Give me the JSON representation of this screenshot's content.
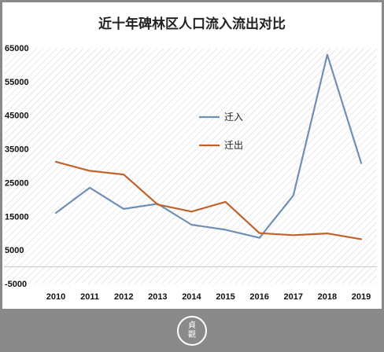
{
  "seal": {
    "line1": "貞",
    "line2": "觀"
  },
  "chart_data": {
    "type": "line",
    "title": "近十年碑林区人口流入流出对比",
    "xlabel": "",
    "ylabel": "",
    "categories": [
      "2010",
      "2011",
      "2012",
      "2013",
      "2014",
      "2015",
      "2016",
      "2017",
      "2018",
      "2019"
    ],
    "y_ticks": [
      65000,
      55000,
      45000,
      35000,
      25000,
      15000,
      5000,
      -5000
    ],
    "y_tick_labels": [
      "65000",
      "55000",
      "45000",
      "35000",
      "25000",
      "15000",
      "5000",
      "-5000"
    ],
    "ylim": [
      -5000,
      65000
    ],
    "grid": false,
    "legend_position": "center",
    "series": [
      {
        "name": "迁入",
        "color": "#6f8fb5",
        "values": [
          16000,
          23500,
          17200,
          18700,
          12500,
          11000,
          8600,
          21200,
          63000,
          30800
        ]
      },
      {
        "name": "迁出",
        "color": "#c0622b",
        "values": [
          31200,
          28500,
          27400,
          18500,
          16400,
          19300,
          10000,
          9400,
          9900,
          8200
        ]
      }
    ]
  }
}
